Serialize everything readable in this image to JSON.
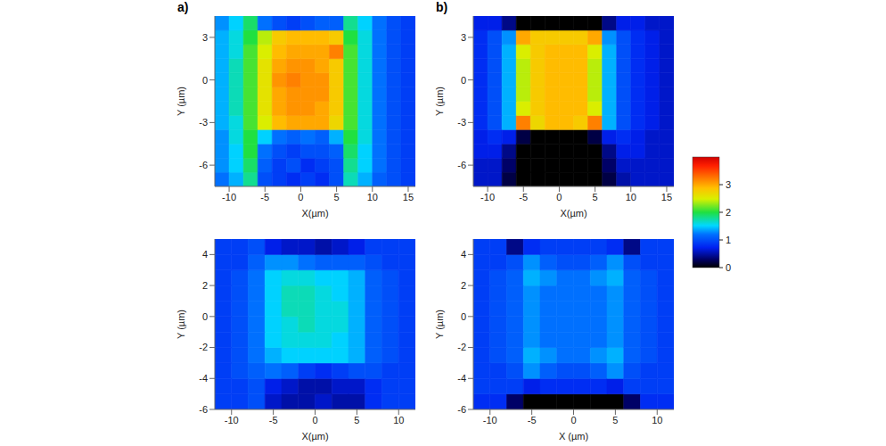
{
  "chart_data": [
    {
      "type": "heatmap",
      "panel_label": "a)",
      "x_label": "X(µm)",
      "y_label": "Y (µm)",
      "xlim": [
        -12,
        16
      ],
      "ylim": [
        -7.5,
        4.5
      ],
      "xticks": [
        -10,
        -5,
        0,
        5,
        10,
        15
      ],
      "yticks": [
        -6,
        -3,
        0,
        3
      ],
      "x": [
        -11,
        -9,
        -7,
        -5,
        -3,
        -1,
        1,
        3,
        5,
        7,
        9,
        11,
        13,
        15
      ],
      "y": [
        -7,
        -6,
        -5,
        -4,
        -3,
        -2,
        -1,
        0,
        1,
        2,
        3,
        4
      ],
      "cells": [
        [
          1.2,
          1.4,
          1.8,
          1.0,
          0.9,
          0.8,
          0.9,
          0.8,
          1.0,
          1.7,
          1.4,
          1.1,
          1.0,
          0.9
        ],
        [
          1.3,
          1.5,
          1.9,
          1.1,
          0.9,
          1.0,
          0.8,
          0.9,
          1.0,
          1.8,
          1.5,
          1.2,
          1.0,
          0.9
        ],
        [
          1.3,
          1.5,
          2.0,
          1.2,
          1.0,
          0.9,
          1.0,
          1.0,
          1.1,
          1.9,
          1.5,
          1.2,
          1.0,
          0.9
        ],
        [
          1.3,
          1.6,
          2.0,
          1.5,
          1.2,
          1.1,
          1.2,
          1.1,
          1.4,
          2.0,
          1.6,
          1.2,
          1.0,
          0.9
        ],
        [
          1.4,
          1.6,
          2.1,
          2.5,
          2.9,
          3.0,
          3.0,
          3.0,
          2.7,
          2.1,
          1.6,
          1.2,
          1.0,
          0.9
        ],
        [
          1.4,
          1.7,
          2.1,
          2.6,
          3.0,
          3.1,
          3.1,
          3.0,
          2.8,
          2.1,
          1.6,
          1.2,
          1.0,
          0.9
        ],
        [
          1.4,
          1.7,
          2.1,
          2.6,
          3.0,
          3.1,
          3.1,
          3.1,
          2.8,
          2.1,
          1.6,
          1.2,
          1.0,
          0.9
        ],
        [
          1.4,
          1.7,
          2.1,
          2.6,
          3.1,
          3.2,
          3.1,
          3.1,
          2.8,
          2.1,
          1.6,
          1.2,
          1.0,
          0.9
        ],
        [
          1.4,
          1.7,
          2.1,
          2.6,
          3.0,
          3.1,
          3.1,
          3.0,
          2.8,
          2.1,
          1.6,
          1.2,
          1.0,
          0.9
        ],
        [
          1.4,
          1.6,
          2.1,
          2.5,
          2.9,
          3.0,
          3.0,
          3.0,
          3.2,
          2.1,
          1.6,
          1.2,
          1.0,
          0.9
        ],
        [
          1.4,
          1.6,
          2.0,
          2.4,
          2.8,
          2.9,
          2.9,
          2.9,
          2.8,
          2.0,
          1.6,
          1.2,
          1.0,
          0.9
        ],
        [
          1.3,
          1.5,
          1.9,
          1.2,
          1.0,
          0.9,
          1.0,
          1.1,
          1.1,
          1.8,
          1.5,
          1.2,
          1.0,
          0.9
        ]
      ]
    },
    {
      "type": "heatmap",
      "panel_label": "b)",
      "x_label": "X(µm)",
      "y_label": "Y (µm)",
      "xlim": [
        -12,
        16
      ],
      "ylim": [
        -7.5,
        4.5
      ],
      "xticks": [
        -10,
        -5,
        0,
        5,
        10,
        15
      ],
      "yticks": [
        -6,
        -3,
        0,
        3
      ],
      "x": [
        -11,
        -9,
        -7,
        -5,
        -3,
        -1,
        1,
        3,
        5,
        7,
        9,
        11,
        13,
        15
      ],
      "y": [
        -7,
        -6,
        -5,
        -4,
        -3,
        -2,
        -1,
        0,
        1,
        2,
        3,
        4
      ],
      "cells": [
        [
          0.6,
          0.6,
          0.2,
          0,
          0,
          0,
          0,
          0,
          0,
          0.2,
          0.5,
          0.6,
          0.6,
          0.6
        ],
        [
          0.6,
          0.6,
          0.3,
          0,
          0,
          0,
          0,
          0,
          0,
          0.3,
          0.6,
          0.6,
          0.6,
          0.6
        ],
        [
          0.7,
          0.7,
          0.4,
          0,
          0,
          0,
          0,
          0,
          0,
          0.4,
          0.7,
          0.7,
          0.6,
          0.6
        ],
        [
          0.7,
          0.8,
          0.7,
          0.2,
          0,
          0,
          0,
          0,
          0.2,
          0.7,
          0.8,
          0.7,
          0.6,
          0.6
        ],
        [
          0.8,
          1.0,
          1.4,
          3.2,
          2.7,
          2.9,
          2.9,
          2.8,
          3.2,
          1.4,
          1.0,
          0.8,
          0.7,
          0.6
        ],
        [
          0.8,
          1.0,
          1.4,
          2.5,
          2.8,
          2.9,
          2.9,
          2.9,
          2.5,
          1.4,
          1.0,
          0.8,
          0.7,
          0.6
        ],
        [
          0.8,
          1.0,
          1.4,
          2.4,
          2.8,
          2.9,
          2.9,
          2.9,
          2.4,
          1.4,
          1.0,
          0.8,
          0.7,
          0.6
        ],
        [
          0.8,
          1.0,
          1.4,
          2.4,
          2.8,
          2.9,
          2.9,
          2.9,
          2.4,
          1.4,
          1.0,
          0.8,
          0.7,
          0.6
        ],
        [
          0.8,
          1.0,
          1.4,
          2.4,
          2.8,
          2.9,
          2.9,
          2.9,
          2.4,
          1.4,
          1.0,
          0.8,
          0.7,
          0.6
        ],
        [
          0.8,
          1.0,
          1.4,
          2.5,
          2.8,
          2.9,
          2.9,
          2.9,
          2.5,
          1.4,
          1.0,
          0.8,
          0.7,
          0.6
        ],
        [
          0.8,
          1.0,
          1.3,
          3.0,
          2.8,
          2.8,
          2.8,
          2.8,
          3.0,
          1.3,
          1.0,
          0.8,
          0.7,
          0.6
        ],
        [
          0.7,
          0.7,
          0.4,
          0,
          0,
          0,
          0,
          0,
          0,
          0.4,
          0.7,
          0.7,
          0.6,
          0.6
        ]
      ]
    },
    {
      "type": "heatmap",
      "x_label": "X(µm)",
      "y_label": "Y (µm)",
      "xlim": [
        -12,
        12
      ],
      "ylim": [
        -6,
        5
      ],
      "xticks": [
        -10,
        -5,
        0,
        5,
        10
      ],
      "yticks": [
        -6,
        -4,
        -2,
        0,
        2,
        4
      ],
      "x": [
        -11,
        -9,
        -7,
        -5,
        -3,
        -1,
        1,
        3,
        5,
        7,
        9,
        11
      ],
      "y": [
        -5.5,
        -4.5,
        -3.5,
        -2.5,
        -1.5,
        -0.5,
        0.5,
        1.5,
        2.5,
        3.5,
        4.5
      ],
      "cells": [
        [
          0.9,
          0.9,
          1.0,
          0.6,
          0.5,
          0.5,
          0.6,
          0.5,
          0.5,
          0.8,
          0.9,
          0.9
        ],
        [
          0.9,
          0.9,
          1.0,
          0.7,
          0.6,
          0.5,
          0.5,
          0.6,
          0.6,
          0.8,
          0.9,
          0.9
        ],
        [
          0.9,
          1.0,
          1.1,
          1.2,
          1.1,
          0.9,
          0.8,
          0.9,
          1.0,
          1.0,
          0.9,
          0.9
        ],
        [
          0.9,
          1.0,
          1.2,
          1.4,
          1.5,
          1.5,
          1.5,
          1.5,
          1.4,
          1.1,
          1.0,
          0.9
        ],
        [
          0.9,
          1.0,
          1.2,
          1.5,
          1.6,
          1.6,
          1.6,
          1.5,
          1.4,
          1.1,
          1.0,
          0.9
        ],
        [
          0.9,
          1.0,
          1.2,
          1.5,
          1.6,
          1.7,
          1.6,
          1.6,
          1.4,
          1.1,
          1.0,
          0.9
        ],
        [
          0.9,
          1.0,
          1.2,
          1.5,
          1.7,
          1.7,
          1.6,
          1.6,
          1.4,
          1.1,
          1.0,
          0.9
        ],
        [
          0.9,
          1.0,
          1.2,
          1.5,
          1.7,
          1.7,
          1.6,
          1.5,
          1.4,
          1.1,
          1.0,
          0.9
        ],
        [
          0.9,
          1.0,
          1.2,
          1.5,
          1.6,
          1.6,
          1.5,
          1.5,
          1.4,
          1.1,
          1.0,
          0.9
        ],
        [
          0.9,
          0.9,
          1.1,
          1.3,
          1.3,
          1.2,
          1.1,
          1.1,
          1.1,
          1.0,
          0.9,
          0.9
        ],
        [
          0.9,
          0.9,
          1.0,
          0.7,
          0.6,
          0.6,
          0.5,
          0.6,
          0.7,
          0.9,
          0.9,
          0.9
        ]
      ]
    },
    {
      "type": "heatmap",
      "x_label": "X (µm)",
      "y_label": "Y (µm)",
      "xlim": [
        -12,
        12
      ],
      "ylim": [
        -6,
        5
      ],
      "xticks": [
        -10,
        -5,
        0,
        5,
        10
      ],
      "yticks": [
        -6,
        -4,
        -2,
        0,
        2,
        4
      ],
      "x": [
        -11,
        -9,
        -7,
        -5,
        -3,
        -1,
        1,
        3,
        5,
        7,
        9,
        11
      ],
      "y": [
        -5.5,
        -4.5,
        -3.5,
        -2.5,
        -1.5,
        -0.5,
        0.5,
        1.5,
        2.5,
        3.5,
        4.5
      ],
      "cells": [
        [
          0.8,
          0.8,
          0.3,
          0,
          0,
          0,
          0,
          0,
          0,
          0.3,
          0.8,
          0.8
        ],
        [
          0.9,
          0.9,
          0.9,
          0.7,
          0.8,
          0.8,
          0.8,
          0.8,
          0.7,
          0.9,
          0.9,
          0.9
        ],
        [
          0.9,
          0.9,
          1.0,
          1.3,
          1.1,
          1.0,
          1.0,
          1.1,
          1.3,
          1.0,
          0.9,
          0.9
        ],
        [
          0.9,
          1.0,
          1.1,
          1.4,
          1.3,
          1.2,
          1.2,
          1.3,
          1.4,
          1.1,
          1.0,
          0.9
        ],
        [
          0.9,
          1.0,
          1.1,
          1.3,
          1.2,
          1.2,
          1.2,
          1.2,
          1.3,
          1.1,
          1.0,
          0.9
        ],
        [
          0.9,
          1.0,
          1.1,
          1.3,
          1.2,
          1.2,
          1.2,
          1.2,
          1.3,
          1.1,
          1.0,
          0.9
        ],
        [
          0.9,
          1.0,
          1.1,
          1.3,
          1.2,
          1.2,
          1.2,
          1.2,
          1.3,
          1.1,
          1.0,
          0.9
        ],
        [
          0.9,
          1.0,
          1.1,
          1.3,
          1.2,
          1.2,
          1.2,
          1.2,
          1.3,
          1.1,
          1.0,
          0.9
        ],
        [
          0.9,
          1.0,
          1.1,
          1.4,
          1.3,
          1.2,
          1.2,
          1.3,
          1.4,
          1.1,
          1.0,
          0.9
        ],
        [
          0.9,
          0.9,
          1.0,
          1.3,
          1.1,
          1.0,
          1.0,
          1.1,
          1.3,
          1.0,
          0.9,
          0.9
        ],
        [
          0.9,
          0.9,
          0.4,
          0.8,
          0.9,
          0.9,
          0.9,
          0.9,
          0.8,
          0.4,
          0.9,
          0.9
        ]
      ]
    }
  ],
  "colorbar": {
    "range": [
      0,
      4
    ],
    "ticks": [
      0,
      1,
      2,
      3
    ]
  }
}
